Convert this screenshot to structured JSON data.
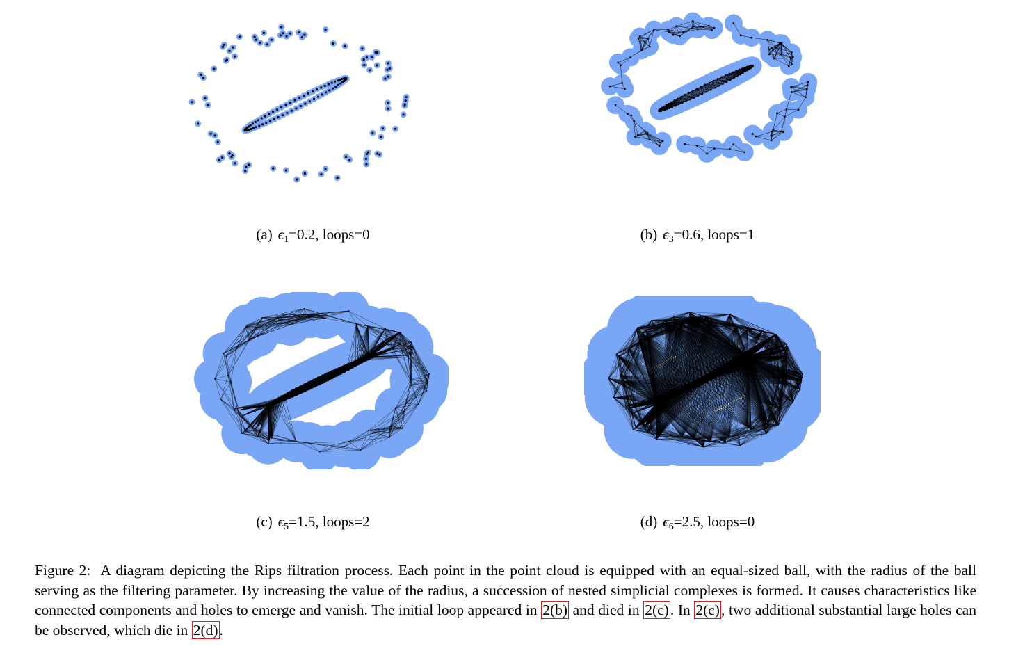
{
  "figure": {
    "panels": [
      {
        "id": "a",
        "label": "(a)",
        "symbol": "ϵ",
        "sub": "1",
        "eq": "=0.2, loops=0",
        "epsilon": 0.2,
        "loops": 0
      },
      {
        "id": "b",
        "label": "(b)",
        "symbol": "ϵ",
        "sub": "3",
        "eq": "=0.6, loops=1",
        "epsilon": 0.6,
        "loops": 1
      },
      {
        "id": "c",
        "label": "(c)",
        "symbol": "ϵ",
        "sub": "5",
        "eq": "=1.5, loops=2",
        "epsilon": 1.5,
        "loops": 2
      },
      {
        "id": "d",
        "label": "(d)",
        "symbol": "ϵ",
        "sub": "6",
        "eq": "=2.5, loops=0",
        "epsilon": 2.5,
        "loops": 0
      }
    ],
    "caption": {
      "figure_label": "Figure 2:",
      "text_1": "A diagram depicting the Rips filtration process. Each point in the point cloud is equipped with an equal-sized ball, with the radius of the ball serving as the filtering parameter. By increasing the value of the radius, a succession of nested simplicial complexes is formed. It causes characteristics like connected components and holes to emerge and vanish. The initial loop appeared in ",
      "ref_1": "2(b)",
      "text_2": " and died in ",
      "ref_2": "2(c)",
      "text_3": ". In ",
      "ref_3": "2(c)",
      "text_4": ", two additional substantial large holes can be observed, which die in ",
      "ref_4": "2(d)",
      "text_5": "."
    },
    "colors": {
      "ball": "#7aa7f5",
      "point": "#000000",
      "edge": "#000000",
      "ref_border": "#e02020"
    }
  }
}
